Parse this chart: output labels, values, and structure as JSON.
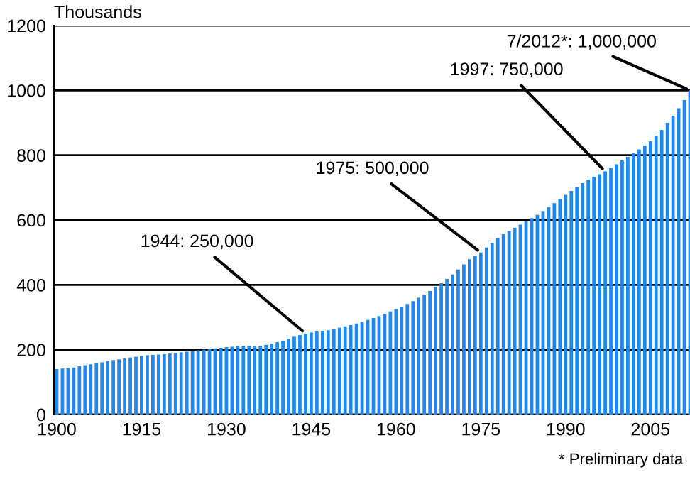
{
  "chart_data": {
    "type": "bar",
    "ylabel": "Thousands",
    "x": [
      1900,
      1901,
      1902,
      1903,
      1904,
      1905,
      1906,
      1907,
      1908,
      1909,
      1910,
      1911,
      1912,
      1913,
      1914,
      1915,
      1916,
      1917,
      1918,
      1919,
      1920,
      1921,
      1922,
      1923,
      1924,
      1925,
      1926,
      1927,
      1928,
      1929,
      1930,
      1931,
      1932,
      1933,
      1934,
      1935,
      1936,
      1937,
      1938,
      1939,
      1940,
      1941,
      1942,
      1943,
      1944,
      1945,
      1946,
      1947,
      1948,
      1949,
      1950,
      1951,
      1952,
      1953,
      1954,
      1955,
      1956,
      1957,
      1958,
      1959,
      1960,
      1961,
      1962,
      1963,
      1964,
      1965,
      1966,
      1967,
      1968,
      1969,
      1970,
      1971,
      1972,
      1973,
      1974,
      1975,
      1976,
      1977,
      1978,
      1979,
      1980,
      1981,
      1982,
      1983,
      1984,
      1985,
      1986,
      1987,
      1988,
      1989,
      1990,
      1991,
      1992,
      1993,
      1994,
      1995,
      1996,
      1997,
      1998,
      1999,
      2000,
      2001,
      2002,
      2003,
      2004,
      2005,
      2006,
      2007,
      2008,
      2009,
      2010,
      2011,
      2012
    ],
    "values": [
      140,
      142,
      143,
      145,
      149,
      152,
      155,
      158,
      161,
      165,
      168,
      170,
      173,
      176,
      178,
      181,
      183,
      184,
      185,
      186,
      188,
      190,
      192,
      194,
      196,
      198,
      200,
      202,
      204,
      206,
      208,
      209,
      212,
      212,
      211,
      210,
      212,
      215,
      219,
      223,
      228,
      234,
      240,
      245,
      250,
      253,
      256,
      258,
      260,
      263,
      268,
      272,
      276,
      281,
      286,
      292,
      298,
      304,
      311,
      318,
      325,
      333,
      341,
      350,
      360,
      370,
      381,
      393,
      405,
      418,
      432,
      447,
      463,
      479,
      490,
      500,
      515,
      530,
      545,
      556,
      566,
      576,
      586,
      596,
      606,
      616,
      628,
      640,
      652,
      665,
      678,
      690,
      702,
      714,
      725,
      733,
      741,
      750,
      760,
      772,
      784,
      795,
      806,
      818,
      830,
      843,
      860,
      878,
      900,
      922,
      945,
      970,
      1000
    ],
    "color": "#1e88f0",
    "xlim": [
      1899.5,
      2012.5
    ],
    "xticks": [
      1900,
      1915,
      1930,
      1945,
      1960,
      1975,
      1990,
      2005
    ],
    "ylim": [
      0,
      1200
    ],
    "yticks": [
      0,
      200,
      400,
      600,
      800,
      1000,
      1200
    ],
    "grid": "y",
    "legend": false,
    "annotations": [
      {
        "text": "1944: 250,000",
        "x": 1944,
        "y": 250
      },
      {
        "text": "1975: 500,000",
        "x": 1975,
        "y": 500
      },
      {
        "text": "1997: 750,000",
        "x": 1997,
        "y": 750
      },
      {
        "text": "7/2012*: 1,000,000",
        "x": 2012,
        "y": 1000
      },
      "* Preliminary data"
    ]
  }
}
